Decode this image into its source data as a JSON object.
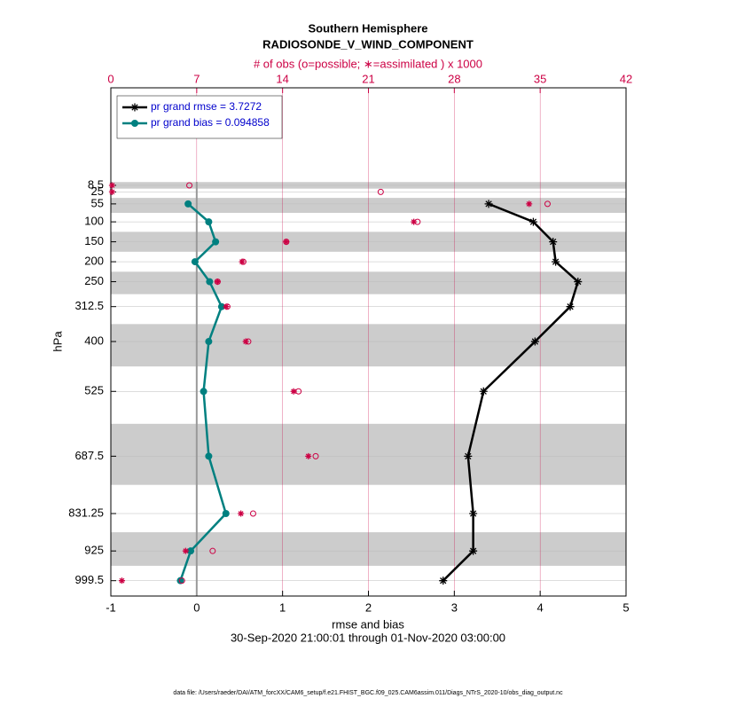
{
  "chart_data": {
    "type": "profile",
    "title": "Southern Hemisphere",
    "subtitle": "RADIOSONDE_V_WIND_COMPONENT",
    "x2_label": "# of obs (o=possible; ∗=assimilated ) x 1000",
    "xlabel": "rmse and bias",
    "date_range": "30-Sep-2020 21:00:01 through 01-Nov-2020 03:00:00",
    "ylabel": "hPa",
    "footer": "data file: /Users/raeder/DAI/ATM_forcXX/CAM6_setup/f.e21.FHIST_BGC.f09_025.CAM6assim.011/Diags_NTrS_2020-10/obs_diag_output.nc",
    "y": [
      8.5,
      25,
      55,
      100,
      150,
      200,
      250,
      312.5,
      400,
      525,
      687.5,
      831.25,
      925,
      999.5
    ],
    "ylim": [
      1038,
      -236
    ],
    "yticks": [
      8.5,
      25,
      55,
      100,
      150,
      200,
      250,
      312.5,
      400,
      525,
      687.5,
      831.25,
      925,
      999.5
    ],
    "xlim": [
      -1,
      5
    ],
    "xticks": [
      -1,
      0,
      1,
      2,
      3,
      4,
      5
    ],
    "x2lim": [
      0,
      42
    ],
    "x2ticks": [
      0,
      7,
      14,
      21,
      28,
      35,
      42
    ],
    "x2_color": "#cc0044",
    "band_color": "#cccccc",
    "grid": true,
    "series": [
      {
        "name": "pr grand rmse = 3.7272",
        "color": "#000000",
        "marker": "asterisk",
        "line": true,
        "values": [
          null,
          null,
          3.4,
          3.92,
          4.15,
          4.18,
          4.44,
          4.35,
          3.94,
          3.34,
          3.16,
          3.22,
          3.22,
          2.87
        ]
      },
      {
        "name": "pr grand bias = 0.094858",
        "color": "#008080",
        "marker": "circle",
        "line": true,
        "values": [
          null,
          null,
          -0.1,
          0.14,
          0.22,
          -0.02,
          0.15,
          0.29,
          0.14,
          0.08,
          0.14,
          0.34,
          -0.07,
          -0.19
        ]
      },
      {
        "color": "#cc0044",
        "marker": "open-circle",
        "axis": "x2",
        "values": [
          6.4,
          22.0,
          35.6,
          25.0,
          14.3,
          10.8,
          8.7,
          9.5,
          11.2,
          15.3,
          16.7,
          11.6,
          8.3,
          5.8
        ]
      },
      {
        "color": "#cc0044",
        "marker": "asterisk",
        "axis": "x2",
        "values": [
          0.1,
          0.1,
          34.1,
          24.7,
          14.3,
          10.7,
          8.7,
          9.4,
          11.0,
          14.9,
          16.1,
          10.6,
          6.1,
          0.9
        ]
      }
    ]
  }
}
